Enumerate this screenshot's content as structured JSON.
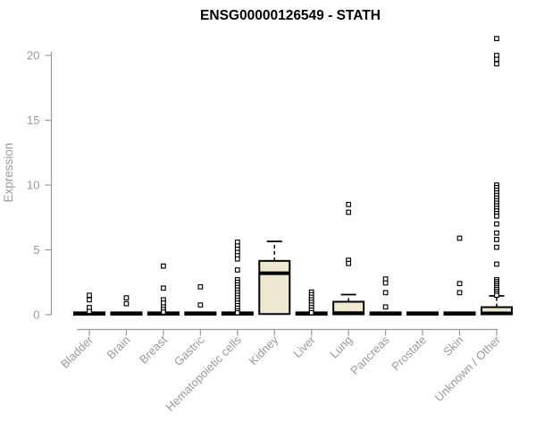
{
  "chart_data": {
    "type": "boxplot",
    "title": "ENSG00000126549 - STATH",
    "ylabel": "Expression",
    "xlabel": "",
    "ylim": [
      0,
      21.8
    ],
    "yticks": [
      0,
      5,
      10,
      15,
      20
    ],
    "grid": false,
    "legend": false,
    "categories": [
      "Bladder",
      "Brain",
      "Breast",
      "Gastric",
      "Hematopoietic cells",
      "Kidney",
      "Liver",
      "Lung",
      "Pancreas",
      "Prostate",
      "Skin",
      "Unknown / Other"
    ],
    "boxes": [
      {
        "category": "Bladder",
        "q1": 0,
        "median": 0.09,
        "q3": 0.18,
        "whisker_high": null,
        "outliers": [
          1.5,
          1.15,
          0.55,
          0.25
        ]
      },
      {
        "category": "Brain",
        "q1": 0,
        "median": 0.09,
        "q3": 0.18,
        "whisker_high": null,
        "outliers": [
          1.3,
          0.85
        ]
      },
      {
        "category": "Breast",
        "q1": 0,
        "median": 0.09,
        "q3": 0.18,
        "whisker_high": null,
        "outliers": [
          3.75,
          2.05,
          1.15,
          0.9,
          0.6,
          0.4,
          0.2
        ]
      },
      {
        "category": "Gastric",
        "q1": 0,
        "median": 0.09,
        "q3": 0.18,
        "whisker_high": null,
        "outliers": [
          2.15,
          0.75
        ]
      },
      {
        "category": "Hematopoietic cells",
        "q1": 0,
        "median": 0.09,
        "q3": 0.18,
        "whisker_high": null,
        "outliers": [
          5.6,
          5.3,
          5.05,
          4.8,
          4.55,
          4.3,
          3.45,
          2.7,
          2.5,
          2.3,
          2.1,
          1.9,
          1.7,
          1.5,
          1.3,
          1.1,
          0.9,
          0.7,
          0.5,
          0.3,
          0.15
        ]
      },
      {
        "category": "Kidney",
        "q1": 0.05,
        "median": 3.2,
        "q3": 4.15,
        "whisker_high": 5.65,
        "outliers": []
      },
      {
        "category": "Liver",
        "q1": 0,
        "median": 0.09,
        "q3": 0.18,
        "whisker_high": null,
        "outliers": [
          1.75,
          1.55,
          1.35,
          1.15,
          0.95,
          0.75,
          0.55,
          0.35,
          0.15
        ]
      },
      {
        "category": "Lung",
        "q1": 0.03,
        "median": 0.12,
        "q3": 1.0,
        "whisker_high": 1.55,
        "outliers": [
          8.5,
          7.9,
          4.2,
          3.95
        ]
      },
      {
        "category": "Pancreas",
        "q1": 0,
        "median": 0.09,
        "q3": 0.18,
        "whisker_high": null,
        "outliers": [
          2.75,
          2.45,
          1.7,
          0.6
        ]
      },
      {
        "category": "Prostate",
        "q1": 0,
        "median": 0.09,
        "q3": 0.18,
        "whisker_high": null,
        "outliers": []
      },
      {
        "category": "Skin",
        "q1": 0,
        "median": 0.09,
        "q3": 0.18,
        "whisker_high": null,
        "outliers": [
          5.9,
          2.4,
          1.7
        ]
      },
      {
        "category": "Unknown / Other",
        "q1": 0.03,
        "median": 0.1,
        "q3": 0.58,
        "whisker_high": 1.45,
        "outliers": [
          21.3,
          20.0,
          19.7,
          19.35,
          10.0,
          9.8,
          9.6,
          9.4,
          9.2,
          9.0,
          8.8,
          8.6,
          8.4,
          8.2,
          8.0,
          7.8,
          7.6,
          7.0,
          6.3,
          5.8,
          5.2,
          3.9,
          2.7,
          2.55,
          2.4,
          2.25,
          2.1,
          1.95,
          1.8,
          1.65,
          1.5
        ]
      }
    ],
    "colors": {
      "background": "#FFFFFF",
      "box_fill": "#EDE8CF",
      "box_stroke": "#000000",
      "median": "#000000",
      "whisker": "#000000",
      "outlier_stroke": "#000000",
      "outlier_fill": "#FFFFFF",
      "axis": "#999999",
      "tick_label": "#999999",
      "title": "#000000"
    }
  }
}
